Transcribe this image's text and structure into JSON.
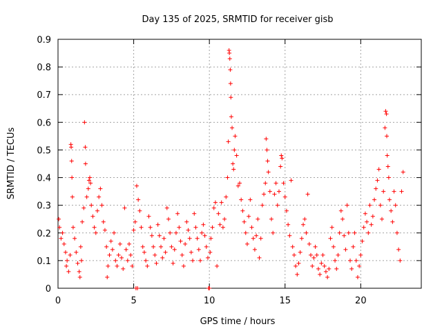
{
  "chart_data": {
    "type": "scatter",
    "title": "Day 135 of 2025, SRMTID for receiver gisb",
    "xlabel": "GPS time / hours",
    "ylabel": "SRMTID / TECUs",
    "xlim": [
      0,
      24
    ],
    "ylim": [
      0,
      0.9
    ],
    "x_ticks": [
      0,
      5,
      10,
      15,
      20
    ],
    "y_ticks": [
      0,
      0.1,
      0.2,
      0.3,
      0.4,
      0.5,
      0.6,
      0.7,
      0.8,
      0.9
    ],
    "x_tick_labels": [
      "0",
      "5",
      "10",
      "15",
      "20"
    ],
    "y_tick_labels": [
      "0",
      "0.1",
      "0.2",
      "0.3",
      "0.4",
      "0.5",
      "0.6",
      "0.7",
      "0.8",
      "0.9"
    ],
    "grid": true,
    "marker": "+",
    "marker_color": "#ff0000",
    "series": [
      {
        "name": "SRMTID",
        "points": [
          [
            0.05,
            0.25
          ],
          [
            0.1,
            0.22
          ],
          [
            0.2,
            0.18
          ],
          [
            0.3,
            0.2
          ],
          [
            0.4,
            0.16
          ],
          [
            0.5,
            0.13
          ],
          [
            0.55,
            0.08
          ],
          [
            0.6,
            0.1
          ],
          [
            0.7,
            0.06
          ],
          [
            0.8,
            0.12
          ],
          [
            0.85,
            0.52
          ],
          [
            0.87,
            0.51
          ],
          [
            0.9,
            0.46
          ],
          [
            0.92,
            0.4
          ],
          [
            0.95,
            0.33
          ],
          [
            1.0,
            0.22
          ],
          [
            1.1,
            0.18
          ],
          [
            1.2,
            0.13
          ],
          [
            1.3,
            0.09
          ],
          [
            1.4,
            0.06
          ],
          [
            1.45,
            0.04
          ],
          [
            1.5,
            0.15
          ],
          [
            1.55,
            0.1
          ],
          [
            1.6,
            0.24
          ],
          [
            1.7,
            0.29
          ],
          [
            1.75,
            0.6
          ],
          [
            1.8,
            0.51
          ],
          [
            1.82,
            0.45
          ],
          [
            1.9,
            0.33
          ],
          [
            2.0,
            0.36
          ],
          [
            2.05,
            0.39
          ],
          [
            2.1,
            0.4
          ],
          [
            2.15,
            0.38
          ],
          [
            2.2,
            0.3
          ],
          [
            2.3,
            0.26
          ],
          [
            2.4,
            0.22
          ],
          [
            2.5,
            0.2
          ],
          [
            2.6,
            0.28
          ],
          [
            2.7,
            0.33
          ],
          [
            2.8,
            0.36
          ],
          [
            2.9,
            0.3
          ],
          [
            3.0,
            0.24
          ],
          [
            3.1,
            0.21
          ],
          [
            3.2,
            0.15
          ],
          [
            3.25,
            0.04
          ],
          [
            3.3,
            0.08
          ],
          [
            3.4,
            0.12
          ],
          [
            3.5,
            0.17
          ],
          [
            3.6,
            0.14
          ],
          [
            3.7,
            0.2
          ],
          [
            3.8,
            0.1
          ],
          [
            3.9,
            0.08
          ],
          [
            4.0,
            0.12
          ],
          [
            4.1,
            0.16
          ],
          [
            4.2,
            0.11
          ],
          [
            4.3,
            0.07
          ],
          [
            4.4,
            0.29
          ],
          [
            4.5,
            0.14
          ],
          [
            4.6,
            0.1
          ],
          [
            4.7,
            0.16
          ],
          [
            4.8,
            0.12
          ],
          [
            4.9,
            0.08
          ],
          [
            5.0,
            0.21
          ],
          [
            5.1,
            0.24
          ],
          [
            5.15,
            0.0
          ],
          [
            5.2,
            0.37
          ],
          [
            5.25,
            0.0
          ],
          [
            5.3,
            0.32
          ],
          [
            5.4,
            0.28
          ],
          [
            5.5,
            0.22
          ],
          [
            5.6,
            0.15
          ],
          [
            5.7,
            0.13
          ],
          [
            5.8,
            0.1
          ],
          [
            5.9,
            0.08
          ],
          [
            6.0,
            0.26
          ],
          [
            6.1,
            0.22
          ],
          [
            6.2,
            0.19
          ],
          [
            6.3,
            0.15
          ],
          [
            6.4,
            0.12
          ],
          [
            6.5,
            0.09
          ],
          [
            6.6,
            0.23
          ],
          [
            6.7,
            0.19
          ],
          [
            6.8,
            0.15
          ],
          [
            6.9,
            0.11
          ],
          [
            7.0,
            0.18
          ],
          [
            7.1,
            0.13
          ],
          [
            7.2,
            0.29
          ],
          [
            7.3,
            0.25
          ],
          [
            7.4,
            0.2
          ],
          [
            7.5,
            0.15
          ],
          [
            7.6,
            0.09
          ],
          [
            7.7,
            0.14
          ],
          [
            7.8,
            0.2
          ],
          [
            7.9,
            0.27
          ],
          [
            8.0,
            0.22
          ],
          [
            8.1,
            0.17
          ],
          [
            8.2,
            0.12
          ],
          [
            8.3,
            0.08
          ],
          [
            8.4,
            0.16
          ],
          [
            8.5,
            0.24
          ],
          [
            8.6,
            0.21
          ],
          [
            8.7,
            0.18
          ],
          [
            8.8,
            0.13
          ],
          [
            8.9,
            0.1
          ],
          [
            9.0,
            0.27
          ],
          [
            9.1,
            0.22
          ],
          [
            9.2,
            0.18
          ],
          [
            9.3,
            0.14
          ],
          [
            9.4,
            0.1
          ],
          [
            9.5,
            0.2
          ],
          [
            9.6,
            0.23
          ],
          [
            9.7,
            0.19
          ],
          [
            9.8,
            0.15
          ],
          [
            9.9,
            0.11
          ],
          [
            9.95,
            0.0
          ],
          [
            10.0,
            0.0
          ],
          [
            10.05,
            0.13
          ],
          [
            10.1,
            0.18
          ],
          [
            10.2,
            0.22
          ],
          [
            10.3,
            0.29
          ],
          [
            10.4,
            0.31
          ],
          [
            10.5,
            0.08
          ],
          [
            10.6,
            0.27
          ],
          [
            10.7,
            0.23
          ],
          [
            10.8,
            0.31
          ],
          [
            10.9,
            0.22
          ],
          [
            11.0,
            0.25
          ],
          [
            11.1,
            0.33
          ],
          [
            11.2,
            0.4
          ],
          [
            11.25,
            0.53
          ],
          [
            11.3,
            0.86
          ],
          [
            11.32,
            0.85
          ],
          [
            11.35,
            0.83
          ],
          [
            11.38,
            0.79
          ],
          [
            11.4,
            0.74
          ],
          [
            11.42,
            0.69
          ],
          [
            11.45,
            0.62
          ],
          [
            11.5,
            0.58
          ],
          [
            11.55,
            0.45
          ],
          [
            11.6,
            0.43
          ],
          [
            11.65,
            0.5
          ],
          [
            11.7,
            0.55
          ],
          [
            11.8,
            0.48
          ],
          [
            11.9,
            0.37
          ],
          [
            12.0,
            0.38
          ],
          [
            12.1,
            0.32
          ],
          [
            12.2,
            0.28
          ],
          [
            12.3,
            0.24
          ],
          [
            12.4,
            0.2
          ],
          [
            12.5,
            0.16
          ],
          [
            12.6,
            0.26
          ],
          [
            12.7,
            0.32
          ],
          [
            12.8,
            0.22
          ],
          [
            12.9,
            0.18
          ],
          [
            13.0,
            0.14
          ],
          [
            13.1,
            0.19
          ],
          [
            13.2,
            0.25
          ],
          [
            13.3,
            0.11
          ],
          [
            13.4,
            0.18
          ],
          [
            13.5,
            0.3
          ],
          [
            13.6,
            0.34
          ],
          [
            13.7,
            0.38
          ],
          [
            13.75,
            0.54
          ],
          [
            13.8,
            0.5
          ],
          [
            13.85,
            0.46
          ],
          [
            13.9,
            0.42
          ],
          [
            14.0,
            0.35
          ],
          [
            14.1,
            0.25
          ],
          [
            14.2,
            0.2
          ],
          [
            14.3,
            0.34
          ],
          [
            14.4,
            0.38
          ],
          [
            14.5,
            0.3
          ],
          [
            14.6,
            0.35
          ],
          [
            14.7,
            0.44
          ],
          [
            14.75,
            0.48
          ],
          [
            14.8,
            0.47
          ],
          [
            14.9,
            0.38
          ],
          [
            15.0,
            0.33
          ],
          [
            15.1,
            0.28
          ],
          [
            15.2,
            0.23
          ],
          [
            15.3,
            0.19
          ],
          [
            15.4,
            0.39
          ],
          [
            15.5,
            0.15
          ],
          [
            15.6,
            0.12
          ],
          [
            15.7,
            0.08
          ],
          [
            15.8,
            0.05
          ],
          [
            15.9,
            0.09
          ],
          [
            16.0,
            0.13
          ],
          [
            16.1,
            0.18
          ],
          [
            16.2,
            0.23
          ],
          [
            16.3,
            0.25
          ],
          [
            16.4,
            0.2
          ],
          [
            16.5,
            0.34
          ],
          [
            16.6,
            0.16
          ],
          [
            16.7,
            0.12
          ],
          [
            16.8,
            0.08
          ],
          [
            16.9,
            0.11
          ],
          [
            17.0,
            0.15
          ],
          [
            17.1,
            0.12
          ],
          [
            17.2,
            0.07
          ],
          [
            17.3,
            0.05
          ],
          [
            17.4,
            0.09
          ],
          [
            17.5,
            0.12
          ],
          [
            17.6,
            0.08
          ],
          [
            17.7,
            0.06
          ],
          [
            17.8,
            0.04
          ],
          [
            17.9,
            0.07
          ],
          [
            18.0,
            0.18
          ],
          [
            18.1,
            0.22
          ],
          [
            18.2,
            0.15
          ],
          [
            18.3,
            0.1
          ],
          [
            18.4,
            0.07
          ],
          [
            18.5,
            0.12
          ],
          [
            18.6,
            0.2
          ],
          [
            18.7,
            0.28
          ],
          [
            18.8,
            0.25
          ],
          [
            18.9,
            0.19
          ],
          [
            19.0,
            0.14
          ],
          [
            19.1,
            0.3
          ],
          [
            19.2,
            0.2
          ],
          [
            19.3,
            0.1
          ],
          [
            19.4,
            0.07
          ],
          [
            19.5,
            0.15
          ],
          [
            19.6,
            0.2
          ],
          [
            19.7,
            0.1
          ],
          [
            19.8,
            0.04
          ],
          [
            19.9,
            0.08
          ],
          [
            20.0,
            0.12
          ],
          [
            20.1,
            0.17
          ],
          [
            20.2,
            0.22
          ],
          [
            20.3,
            0.27
          ],
          [
            20.4,
            0.24
          ],
          [
            20.5,
            0.2
          ],
          [
            20.6,
            0.3
          ],
          [
            20.7,
            0.23
          ],
          [
            20.8,
            0.26
          ],
          [
            20.9,
            0.32
          ],
          [
            21.0,
            0.36
          ],
          [
            21.1,
            0.39
          ],
          [
            21.2,
            0.43
          ],
          [
            21.3,
            0.3
          ],
          [
            21.4,
            0.25
          ],
          [
            21.5,
            0.35
          ],
          [
            21.6,
            0.58
          ],
          [
            21.65,
            0.64
          ],
          [
            21.7,
            0.63
          ],
          [
            21.72,
            0.55
          ],
          [
            21.75,
            0.48
          ],
          [
            21.8,
            0.44
          ],
          [
            21.85,
            0.4
          ],
          [
            21.9,
            0.32
          ],
          [
            22.0,
            0.28
          ],
          [
            22.1,
            0.24
          ],
          [
            22.2,
            0.35
          ],
          [
            22.3,
            0.3
          ],
          [
            22.4,
            0.2
          ],
          [
            22.5,
            0.14
          ],
          [
            22.6,
            0.1
          ],
          [
            22.7,
            0.35
          ],
          [
            22.8,
            0.42
          ]
        ]
      }
    ]
  }
}
